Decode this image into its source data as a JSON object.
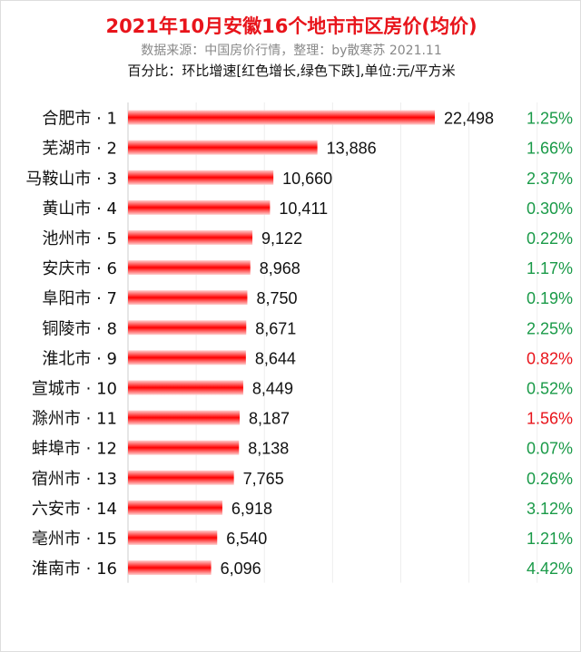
{
  "chart_data": {
    "type": "bar",
    "orientation": "horizontal",
    "title": "2021年10月安徽16个地市市区房价(均价)",
    "subtitle": "数据来源：中国房价行情，整理：by散寒苏 2021.11",
    "note": "百分比：环比增速[红色增长,绿色下跌],单位:元/平方米",
    "categories": [
      "合肥市 · 1",
      "芜湖市 · 2",
      "马鞍山市 · 3",
      "黄山市 · 4",
      "池州市 · 5",
      "安庆市 · 6",
      "阜阳市 · 7",
      "铜陵市 · 8",
      "淮北市 · 9",
      "宣城市 · 10",
      "滁州市 · 11",
      "蚌埠市 · 12",
      "宿州市 · 13",
      "六安市 · 14",
      "亳州市 · 15",
      "淮南市 · 16"
    ],
    "values": [
      22498,
      13886,
      10660,
      10411,
      9122,
      8968,
      8750,
      8671,
      8644,
      8449,
      8187,
      8138,
      7765,
      6918,
      6540,
      6096
    ],
    "value_labels": [
      "22,498",
      "13,886",
      "10,660",
      "10,411",
      "9,122",
      "8,968",
      "8,750",
      "8,671",
      "8,644",
      "8,449",
      "8,187",
      "8,138",
      "7,765",
      "6,918",
      "6,540",
      "6,096"
    ],
    "changes": [
      "1.25%",
      "1.66%",
      "2.37%",
      "0.30%",
      "0.22%",
      "1.17%",
      "0.19%",
      "2.25%",
      "0.82%",
      "0.52%",
      "1.56%",
      "0.07%",
      "0.26%",
      "3.12%",
      "1.21%",
      "4.42%"
    ],
    "change_colors": [
      "green",
      "green",
      "green",
      "green",
      "green",
      "green",
      "green",
      "green",
      "red",
      "green",
      "red",
      "green",
      "green",
      "green",
      "green",
      "green"
    ],
    "xlim": [
      0,
      30000
    ],
    "grid": true,
    "colors": {
      "bar": "#ff0000",
      "green": "#1a9a48",
      "red": "#e8141b"
    }
  }
}
